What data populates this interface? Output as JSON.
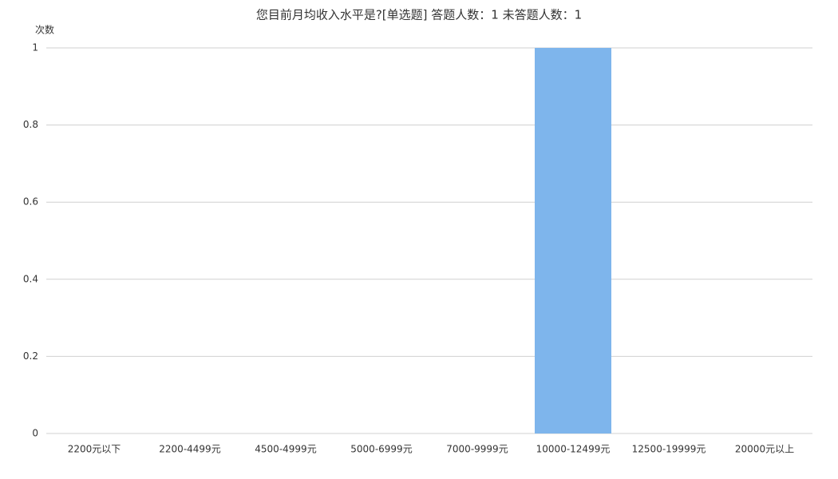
{
  "chart_data": {
    "type": "bar",
    "title": "您目前月均收入水平是?[单选题]  答题人数：1  未答题人数：1",
    "y_label": "次数",
    "categories": [
      "2200元以下",
      "2200-4499元",
      "4500-4999元",
      "5000-6999元",
      "7000-9999元",
      "10000-12499元",
      "12500-19999元",
      "20000元以上"
    ],
    "values": [
      0,
      0,
      0,
      0,
      0,
      1,
      0,
      0
    ],
    "color": "#7eb5ec",
    "ylim": [
      0,
      1
    ],
    "yticks": [
      0,
      0.2,
      0.4,
      0.6,
      0.8,
      1
    ],
    "grid": true
  }
}
